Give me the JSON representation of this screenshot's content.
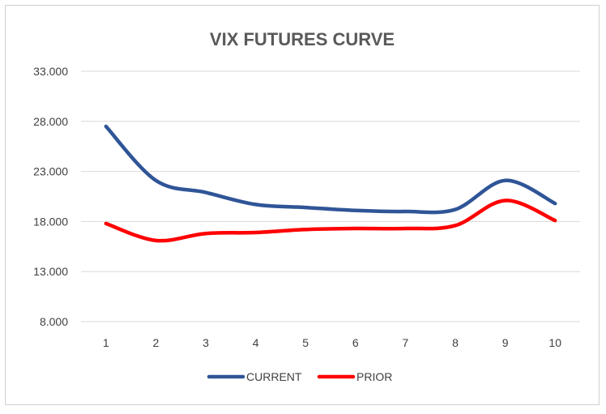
{
  "chart_data": {
    "type": "line",
    "title": "VIX FUTURES CURVE",
    "xlabel": "",
    "ylabel": "",
    "x": [
      "1",
      "2",
      "3",
      "4",
      "5",
      "6",
      "7",
      "8",
      "9",
      "10"
    ],
    "ylim": [
      8,
      33
    ],
    "yticks": [
      "8.000",
      "13.000",
      "18.000",
      "23.000",
      "28.000",
      "33.000"
    ],
    "grid": true,
    "legend": "bottom",
    "series": [
      {
        "name": "CURRENT",
        "color": "#2F5597",
        "values": [
          27.5,
          22.1,
          20.9,
          19.7,
          19.4,
          19.1,
          19.0,
          19.2,
          22.1,
          19.8
        ]
      },
      {
        "name": "PRIOR",
        "color": "#FF0000",
        "values": [
          17.8,
          16.1,
          16.8,
          16.9,
          17.2,
          17.3,
          17.3,
          17.6,
          20.1,
          18.1
        ]
      }
    ]
  }
}
